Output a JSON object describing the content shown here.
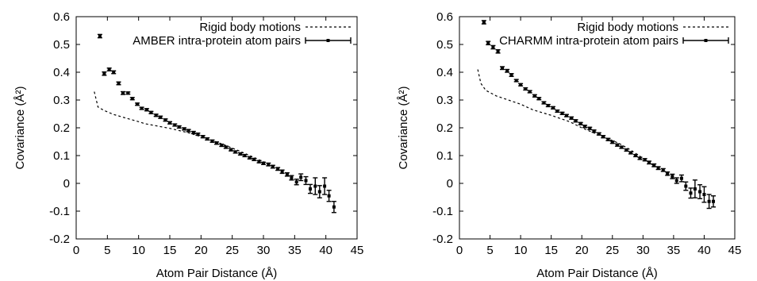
{
  "chart_data": [
    {
      "type": "scatter",
      "xlabel": "Atom Pair Distance (Å)",
      "ylabel": "Covariance (Å²)",
      "xlim": [
        0,
        45
      ],
      "ylim": [
        -0.2,
        0.6
      ],
      "xticks": [
        0,
        5,
        10,
        15,
        20,
        25,
        30,
        35,
        40,
        45
      ],
      "yticks": [
        -0.2,
        -0.1,
        0,
        0.1,
        0.2,
        0.3,
        0.4,
        0.5,
        0.6
      ],
      "xtick_labels": [
        "0",
        "5",
        "10",
        "15",
        "20",
        "25",
        "30",
        "35",
        "40",
        "45"
      ],
      "ytick_labels": [
        "-0.2",
        "-0.1",
        "0",
        "0.1",
        "0.2",
        "0.3",
        "0.4",
        "0.5",
        "0.6"
      ],
      "grid": false,
      "legend": "top-right",
      "series": [
        {
          "name": "Rigid body motions",
          "style": "dashed-line",
          "x": [
            2.9,
            3.5,
            4.5,
            6,
            8,
            10,
            11,
            15,
            18,
            20,
            23,
            26,
            28,
            30,
            32
          ],
          "y": [
            0.33,
            0.275,
            0.262,
            0.248,
            0.235,
            0.222,
            0.215,
            0.198,
            0.182,
            0.168,
            0.145,
            0.118,
            0.098,
            0.078,
            0.06
          ]
        },
        {
          "name": "AMBER intra-protein atom pairs",
          "style": "points-errorbars",
          "x": [
            3.8,
            4.5,
            5.3,
            6.0,
            6.8,
            7.5,
            8.3,
            9.0,
            9.8,
            10.5,
            11.3,
            12.0,
            12.8,
            13.5,
            14.3,
            15.0,
            15.8,
            16.5,
            17.3,
            18.0,
            18.8,
            19.5,
            20.3,
            21.0,
            21.8,
            22.5,
            23.3,
            24.0,
            24.8,
            25.5,
            26.3,
            27.0,
            27.8,
            28.5,
            29.3,
            30.0,
            30.8,
            31.5,
            32.3,
            33.0,
            33.8,
            34.5,
            35.3,
            36.0,
            36.8,
            37.5,
            38.3,
            39.0,
            39.8,
            40.5,
            41.3
          ],
          "y": [
            0.53,
            0.395,
            0.41,
            0.4,
            0.36,
            0.325,
            0.325,
            0.305,
            0.285,
            0.27,
            0.265,
            0.255,
            0.245,
            0.238,
            0.228,
            0.218,
            0.21,
            0.203,
            0.196,
            0.19,
            0.183,
            0.177,
            0.168,
            0.16,
            0.152,
            0.145,
            0.137,
            0.13,
            0.121,
            0.113,
            0.106,
            0.1,
            0.092,
            0.086,
            0.078,
            0.072,
            0.068,
            0.06,
            0.052,
            0.042,
            0.032,
            0.02,
            0.005,
            0.022,
            0.01,
            -0.02,
            -0.01,
            -0.03,
            -0.01,
            -0.045,
            -0.085
          ],
          "err": [
            0.006,
            0.006,
            0.005,
            0.005,
            0.005,
            0.005,
            0.004,
            0.004,
            0.004,
            0.004,
            0.004,
            0.004,
            0.004,
            0.004,
            0.004,
            0.004,
            0.004,
            0.004,
            0.004,
            0.004,
            0.004,
            0.004,
            0.004,
            0.004,
            0.004,
            0.004,
            0.004,
            0.004,
            0.004,
            0.004,
            0.004,
            0.004,
            0.004,
            0.004,
            0.004,
            0.004,
            0.005,
            0.005,
            0.005,
            0.006,
            0.006,
            0.008,
            0.01,
            0.012,
            0.014,
            0.016,
            0.03,
            0.022,
            0.03,
            0.02,
            0.02
          ]
        }
      ]
    },
    {
      "type": "scatter",
      "xlabel": "Atom Pair Distance (Å)",
      "ylabel": "Covariance (Å²)",
      "xlim": [
        0,
        45
      ],
      "ylim": [
        -0.2,
        0.6
      ],
      "xticks": [
        0,
        5,
        10,
        15,
        20,
        25,
        30,
        35,
        40,
        45
      ],
      "yticks": [
        -0.2,
        -0.1,
        0,
        0.1,
        0.2,
        0.3,
        0.4,
        0.5,
        0.6
      ],
      "xtick_labels": [
        "0",
        "5",
        "10",
        "15",
        "20",
        "25",
        "30",
        "35",
        "40",
        "45"
      ],
      "ytick_labels": [
        "-0.2",
        "-0.1",
        "0",
        "0.1",
        "0.2",
        "0.3",
        "0.4",
        "0.5",
        "0.6"
      ],
      "grid": false,
      "legend": "top-right",
      "series": [
        {
          "name": "Rigid body motions",
          "style": "dashed-line",
          "x": [
            3.0,
            3.5,
            4.3,
            6,
            8,
            10,
            12,
            15,
            18,
            20,
            23,
            26,
            28,
            30,
            32
          ],
          "y": [
            0.41,
            0.36,
            0.335,
            0.315,
            0.3,
            0.285,
            0.265,
            0.245,
            0.222,
            0.2,
            0.172,
            0.145,
            0.12,
            0.09,
            0.06
          ]
        },
        {
          "name": "CHARMM intra-protein atom pairs",
          "style": "points-errorbars",
          "x": [
            4.0,
            4.7,
            5.5,
            6.3,
            7.0,
            7.8,
            8.5,
            9.3,
            10.0,
            10.8,
            11.5,
            12.3,
            13.0,
            13.8,
            14.5,
            15.3,
            16.0,
            16.8,
            17.5,
            18.3,
            19.0,
            19.8,
            20.5,
            21.3,
            22.0,
            22.8,
            23.5,
            24.3,
            25.0,
            25.8,
            26.5,
            27.3,
            28.0,
            28.8,
            29.5,
            30.3,
            31.0,
            31.8,
            32.5,
            33.3,
            34.0,
            34.8,
            35.5,
            36.3,
            37.0,
            37.8,
            38.5,
            39.3,
            40.0,
            40.8,
            41.5
          ],
          "y": [
            0.58,
            0.505,
            0.49,
            0.475,
            0.415,
            0.405,
            0.39,
            0.37,
            0.355,
            0.34,
            0.33,
            0.315,
            0.305,
            0.29,
            0.28,
            0.272,
            0.26,
            0.252,
            0.244,
            0.235,
            0.225,
            0.215,
            0.205,
            0.198,
            0.188,
            0.178,
            0.168,
            0.158,
            0.148,
            0.138,
            0.13,
            0.12,
            0.11,
            0.1,
            0.09,
            0.085,
            0.075,
            0.065,
            0.055,
            0.048,
            0.035,
            0.025,
            0.01,
            0.018,
            -0.01,
            -0.035,
            -0.02,
            -0.03,
            -0.04,
            -0.065,
            -0.065
          ],
          "err": [
            0.006,
            0.006,
            0.006,
            0.006,
            0.005,
            0.005,
            0.005,
            0.004,
            0.004,
            0.004,
            0.004,
            0.004,
            0.004,
            0.004,
            0.004,
            0.004,
            0.004,
            0.004,
            0.004,
            0.004,
            0.004,
            0.004,
            0.004,
            0.004,
            0.004,
            0.004,
            0.004,
            0.004,
            0.004,
            0.004,
            0.004,
            0.004,
            0.004,
            0.004,
            0.004,
            0.004,
            0.005,
            0.005,
            0.005,
            0.005,
            0.006,
            0.008,
            0.01,
            0.012,
            0.015,
            0.018,
            0.032,
            0.025,
            0.028,
            0.025,
            0.02
          ]
        }
      ]
    }
  ]
}
